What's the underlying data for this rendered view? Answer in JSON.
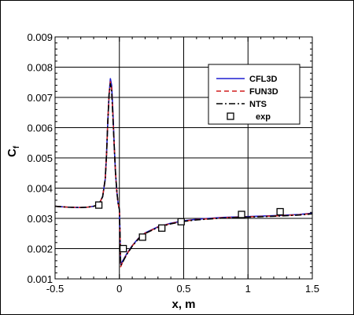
{
  "chart_data": {
    "type": "line",
    "xlabel": "x, m",
    "ylabel": "C",
    "ylabel_sub": "f",
    "xlim": [
      -0.5,
      1.5
    ],
    "ylim": [
      0.001,
      0.009
    ],
    "xticks": [
      -0.5,
      0,
      0.5,
      1,
      1.5
    ],
    "xtick_labels": [
      "-0.5",
      "0",
      "0.5",
      "1",
      "1.5"
    ],
    "yticks": [
      0.001,
      0.002,
      0.003,
      0.004,
      0.005,
      0.006,
      0.007,
      0.008,
      0.009
    ],
    "ytick_labels": [
      "0.001",
      "0.002",
      "0.003",
      "0.004",
      "0.005",
      "0.006",
      "0.007",
      "0.008",
      "0.009"
    ],
    "grid": true,
    "legend_position": "top-right",
    "series": [
      {
        "name": "CFL3D",
        "color": "#1f1fd0",
        "dash": "solid",
        "x": [
          -0.5,
          -0.4,
          -0.3,
          -0.25,
          -0.2,
          -0.16,
          -0.13,
          -0.11,
          -0.1,
          -0.09,
          -0.08,
          -0.07,
          -0.06,
          -0.05,
          -0.04,
          -0.03,
          -0.02,
          -0.01,
          0.0,
          0.005,
          0.01,
          0.02,
          0.04,
          0.06,
          0.1,
          0.15,
          0.2,
          0.3,
          0.4,
          0.5,
          0.6,
          0.8,
          1.0,
          1.2,
          1.4,
          1.5
        ],
        "y": [
          0.0034,
          0.00337,
          0.00336,
          0.00337,
          0.0034,
          0.00346,
          0.00372,
          0.0043,
          0.0051,
          0.0062,
          0.0071,
          0.00762,
          0.0074,
          0.0065,
          0.0054,
          0.0045,
          0.0039,
          0.0035,
          0.0033,
          0.0025,
          0.0015,
          0.00155,
          0.0017,
          0.00185,
          0.0021,
          0.00235,
          0.00252,
          0.00272,
          0.00284,
          0.00292,
          0.00297,
          0.00303,
          0.00306,
          0.00309,
          0.00313,
          0.00317
        ]
      },
      {
        "name": "FUN3D",
        "color": "#d01f1f",
        "dash": "6,4",
        "x": [
          -0.5,
          -0.4,
          -0.3,
          -0.25,
          -0.2,
          -0.16,
          -0.13,
          -0.11,
          -0.1,
          -0.09,
          -0.08,
          -0.07,
          -0.06,
          -0.05,
          -0.04,
          -0.03,
          -0.02,
          -0.01,
          0.0,
          0.005,
          0.01,
          0.02,
          0.04,
          0.06,
          0.1,
          0.15,
          0.2,
          0.3,
          0.4,
          0.5,
          0.6,
          0.8,
          1.0,
          1.2,
          1.4,
          1.5
        ],
        "y": [
          0.0034,
          0.00337,
          0.00336,
          0.00337,
          0.0034,
          0.00346,
          0.00372,
          0.0043,
          0.0051,
          0.0062,
          0.0071,
          0.00752,
          0.0073,
          0.0064,
          0.0054,
          0.0045,
          0.0039,
          0.0035,
          0.0033,
          0.0025,
          0.0014,
          0.0015,
          0.00168,
          0.00183,
          0.00209,
          0.00234,
          0.00251,
          0.00271,
          0.00283,
          0.00291,
          0.00296,
          0.00302,
          0.00305,
          0.00308,
          0.00312,
          0.00316
        ]
      },
      {
        "name": "NTS",
        "color": "#000000",
        "dash": "8,3,2,3",
        "x": [
          -0.5,
          -0.4,
          -0.3,
          -0.25,
          -0.2,
          -0.16,
          -0.13,
          -0.11,
          -0.1,
          -0.09,
          -0.08,
          -0.07,
          -0.06,
          -0.05,
          -0.04,
          -0.03,
          -0.02,
          -0.01,
          0.0,
          0.005,
          0.01,
          0.02,
          0.04,
          0.06,
          0.1,
          0.15,
          0.2,
          0.3,
          0.4,
          0.5,
          0.6,
          0.8,
          1.0,
          1.2,
          1.4,
          1.5
        ],
        "y": [
          0.0034,
          0.00337,
          0.00336,
          0.00337,
          0.0034,
          0.00346,
          0.00372,
          0.0043,
          0.0051,
          0.0062,
          0.0071,
          0.00745,
          0.0072,
          0.0063,
          0.0054,
          0.0045,
          0.0039,
          0.0035,
          0.0033,
          0.0025,
          0.00145,
          0.0015,
          0.00167,
          0.00182,
          0.00208,
          0.00233,
          0.0025,
          0.0027,
          0.00282,
          0.0029,
          0.00295,
          0.00301,
          0.00304,
          0.00307,
          0.00311,
          0.00315
        ]
      }
    ],
    "markers": {
      "name": "exp",
      "symbol": "square",
      "x": [
        -0.16,
        0.03,
        0.18,
        0.33,
        0.48,
        0.95,
        1.25
      ],
      "y": [
        0.00344,
        0.002,
        0.00238,
        0.00268,
        0.00289,
        0.00313,
        0.00322
      ]
    }
  }
}
